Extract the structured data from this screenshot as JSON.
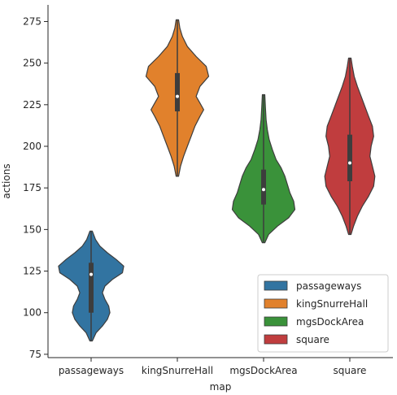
{
  "chart_data": {
    "type": "violin",
    "xlabel": "map",
    "ylabel": "actions",
    "ylim": [
      73,
      285
    ],
    "yticks": [
      75,
      100,
      125,
      150,
      175,
      200,
      225,
      250,
      275
    ],
    "grid": false,
    "legend_position": "lower-right",
    "categories": [
      "passageways",
      "kingSnurreHall",
      "mgsDockArea",
      "square"
    ],
    "series": [
      {
        "name": "passageways",
        "color": "#3274a1",
        "min": 83,
        "q1": 100,
        "median": 123,
        "q3": 130,
        "max": 149,
        "density": [
          [
            83,
            0.02
          ],
          [
            88,
            0.08
          ],
          [
            92,
            0.18
          ],
          [
            96,
            0.26
          ],
          [
            100,
            0.3
          ],
          [
            104,
            0.28
          ],
          [
            108,
            0.22
          ],
          [
            112,
            0.18
          ],
          [
            116,
            0.22
          ],
          [
            120,
            0.34
          ],
          [
            124,
            0.5
          ],
          [
            128,
            0.52
          ],
          [
            132,
            0.4
          ],
          [
            136,
            0.26
          ],
          [
            140,
            0.14
          ],
          [
            144,
            0.07
          ],
          [
            149,
            0.02
          ]
        ]
      },
      {
        "name": "kingSnurreHall",
        "color": "#e1812c",
        "min": 182,
        "q1": 221,
        "median": 230,
        "q3": 244,
        "max": 276,
        "density": [
          [
            182,
            0.02
          ],
          [
            188,
            0.05
          ],
          [
            194,
            0.1
          ],
          [
            200,
            0.16
          ],
          [
            206,
            0.22
          ],
          [
            212,
            0.28
          ],
          [
            218,
            0.36
          ],
          [
            222,
            0.42
          ],
          [
            226,
            0.36
          ],
          [
            230,
            0.3
          ],
          [
            236,
            0.36
          ],
          [
            242,
            0.5
          ],
          [
            248,
            0.46
          ],
          [
            254,
            0.3
          ],
          [
            260,
            0.16
          ],
          [
            266,
            0.08
          ],
          [
            271,
            0.04
          ],
          [
            276,
            0.02
          ]
        ]
      },
      {
        "name": "mgsDockArea",
        "color": "#3a923a",
        "min": 142,
        "q1": 165,
        "median": 174,
        "q3": 186,
        "max": 231,
        "density": [
          [
            142,
            0.02
          ],
          [
            147,
            0.08
          ],
          [
            152,
            0.22
          ],
          [
            157,
            0.4
          ],
          [
            162,
            0.5
          ],
          [
            167,
            0.48
          ],
          [
            172,
            0.42
          ],
          [
            177,
            0.38
          ],
          [
            182,
            0.34
          ],
          [
            187,
            0.28
          ],
          [
            192,
            0.2
          ],
          [
            198,
            0.14
          ],
          [
            204,
            0.09
          ],
          [
            210,
            0.06
          ],
          [
            216,
            0.04
          ],
          [
            223,
            0.03
          ],
          [
            231,
            0.02
          ]
        ]
      },
      {
        "name": "square",
        "color": "#c03d3e",
        "min": 147,
        "q1": 179,
        "median": 190,
        "q3": 207,
        "max": 253,
        "density": [
          [
            147,
            0.02
          ],
          [
            152,
            0.06
          ],
          [
            158,
            0.12
          ],
          [
            164,
            0.2
          ],
          [
            170,
            0.3
          ],
          [
            176,
            0.38
          ],
          [
            182,
            0.4
          ],
          [
            188,
            0.36
          ],
          [
            194,
            0.32
          ],
          [
            200,
            0.34
          ],
          [
            206,
            0.38
          ],
          [
            212,
            0.36
          ],
          [
            218,
            0.3
          ],
          [
            224,
            0.24
          ],
          [
            230,
            0.18
          ],
          [
            236,
            0.12
          ],
          [
            242,
            0.07
          ],
          [
            248,
            0.04
          ],
          [
            253,
            0.02
          ]
        ]
      }
    ]
  }
}
